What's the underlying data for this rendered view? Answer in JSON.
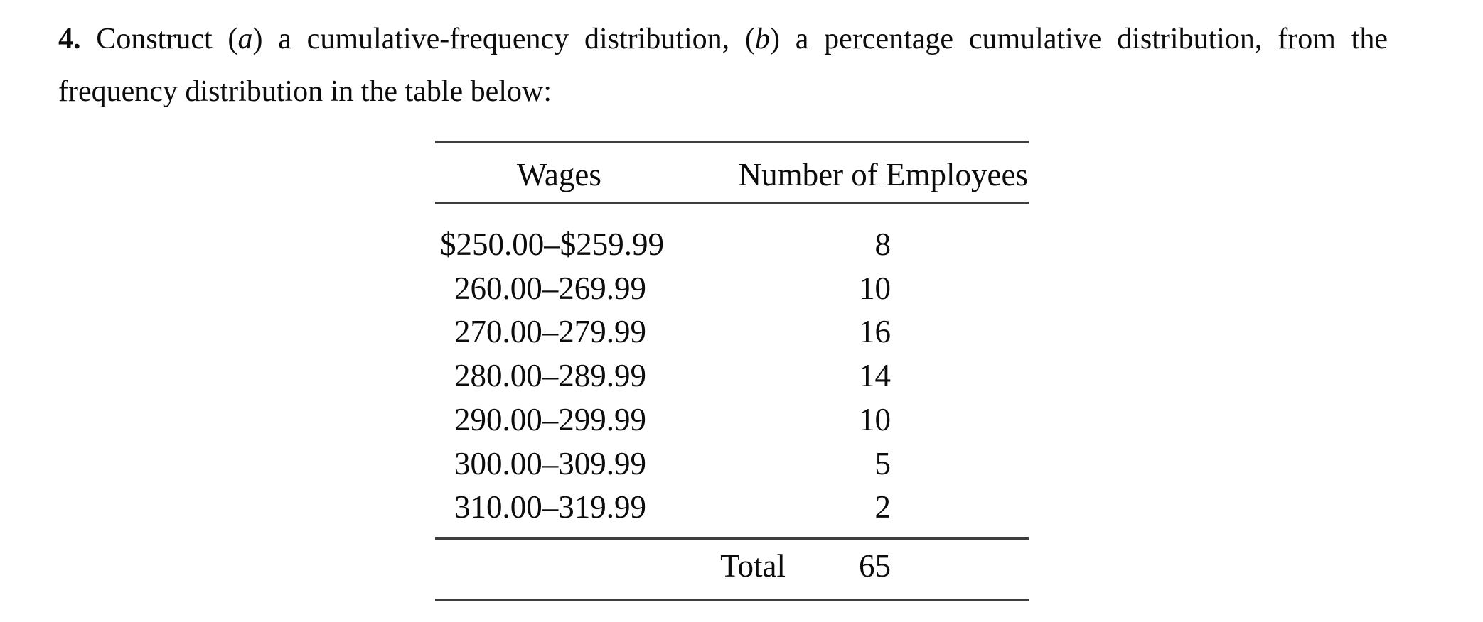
{
  "page": {
    "background_color": "#ffffff",
    "text_color": "#0c0c0c",
    "rule_color": "#3e3e3e"
  },
  "problem": {
    "number": "4.",
    "line1": {
      "part1": " Construct (",
      "italic1": "a",
      "part2": ") a cumulative-frequency distribution, (",
      "italic2": "b",
      "part3": ") a percentage cumulative distribution, from the"
    },
    "line2": "frequency distribution in the table below:"
  },
  "table": {
    "headers": {
      "wages": "Wages",
      "employees": "Number of Employees"
    },
    "rows": [
      {
        "wages": "$250.00–$259.99",
        "employees": "8"
      },
      {
        "wages": "260.00–269.99",
        "employees": "10"
      },
      {
        "wages": "270.00–279.99",
        "employees": "16"
      },
      {
        "wages": "280.00–289.99",
        "employees": "14"
      },
      {
        "wages": "290.00–299.99",
        "employees": "10"
      },
      {
        "wages": "300.00–309.99",
        "employees": "5"
      },
      {
        "wages": "310.00–319.99",
        "employees": "2"
      }
    ],
    "total": {
      "label": "Total",
      "value": "65"
    }
  }
}
